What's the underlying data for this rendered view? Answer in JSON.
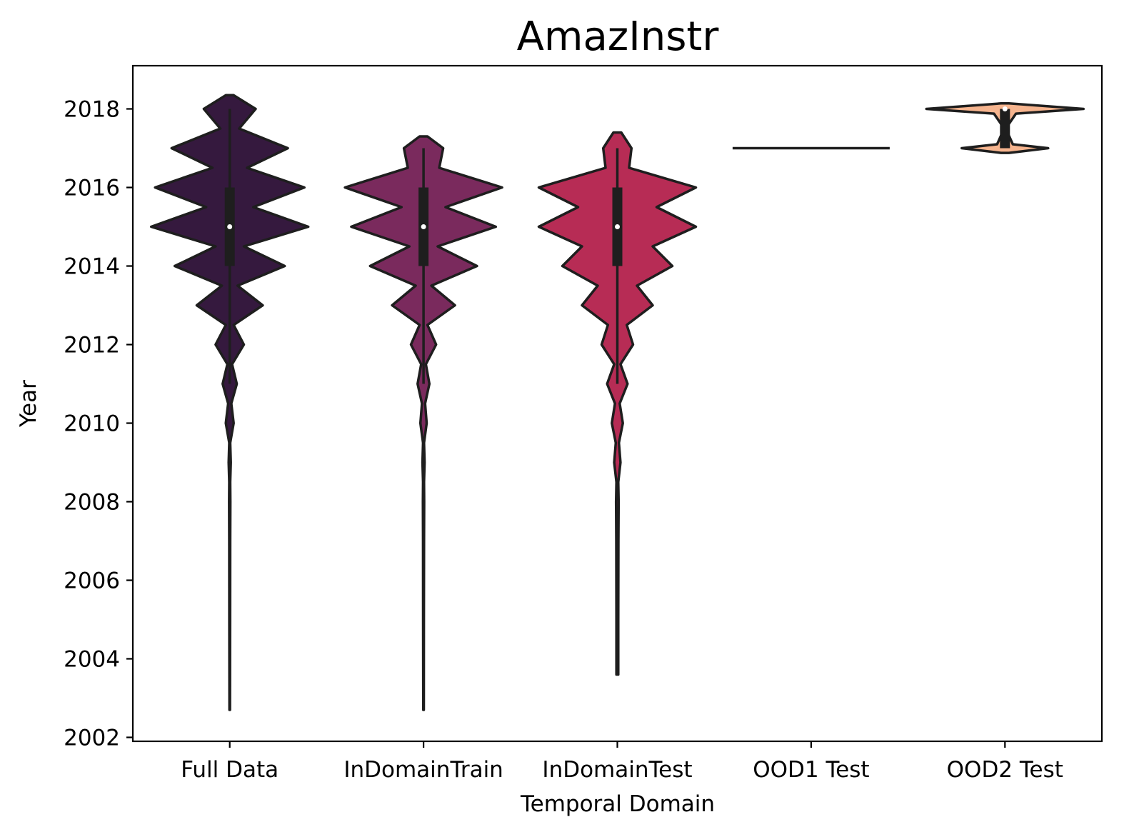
{
  "chart_data": {
    "type": "violin",
    "title": "AmazInstr",
    "xlabel": "Temporal Domain",
    "ylabel": "Year",
    "ylim": [
      2001.9,
      2019.1
    ],
    "yticks": [
      2002,
      2004,
      2006,
      2008,
      2010,
      2012,
      2014,
      2016,
      2018
    ],
    "categories": [
      "Full Data",
      "InDomainTrain",
      "InDomainTest",
      "OOD1 Test",
      "OOD2 Test"
    ],
    "grid": false,
    "series": [
      {
        "category": "Full Data",
        "color": "#35193e",
        "density": [
          [
            2002.7,
            0.004
          ],
          [
            2005,
            0.005
          ],
          [
            2007,
            0.006
          ],
          [
            2008,
            0.008
          ],
          [
            2008.5,
            0.006
          ],
          [
            2009,
            0.014
          ],
          [
            2009.5,
            0.006
          ],
          [
            2010,
            0.05
          ],
          [
            2010.5,
            0.02
          ],
          [
            2011,
            0.09
          ],
          [
            2011.5,
            0.03
          ],
          [
            2012,
            0.18
          ],
          [
            2012.5,
            0.05
          ],
          [
            2013,
            0.42
          ],
          [
            2013.5,
            0.1
          ],
          [
            2014,
            0.7
          ],
          [
            2014.5,
            0.18
          ],
          [
            2015,
            1.0
          ],
          [
            2015.5,
            0.3
          ],
          [
            2016,
            0.95
          ],
          [
            2016.5,
            0.22
          ],
          [
            2017,
            0.74
          ],
          [
            2017.5,
            0.12
          ],
          [
            2018,
            0.33
          ],
          [
            2018.35,
            0.05
          ]
        ],
        "q1": 2014,
        "median": 2015,
        "q3": 2016,
        "whisker_low": 2011,
        "whisker_high": 2018
      },
      {
        "category": "InDomainTrain",
        "color": "#7a2a5d",
        "density": [
          [
            2002.7,
            0.004
          ],
          [
            2005,
            0.005
          ],
          [
            2007,
            0.006
          ],
          [
            2008,
            0.008
          ],
          [
            2008.5,
            0.006
          ],
          [
            2009,
            0.014
          ],
          [
            2009.5,
            0.006
          ],
          [
            2010,
            0.04
          ],
          [
            2010.5,
            0.02
          ],
          [
            2011,
            0.075
          ],
          [
            2011.5,
            0.03
          ],
          [
            2012,
            0.16
          ],
          [
            2012.5,
            0.05
          ],
          [
            2013,
            0.4
          ],
          [
            2013.5,
            0.1
          ],
          [
            2014,
            0.68
          ],
          [
            2014.5,
            0.18
          ],
          [
            2015,
            0.92
          ],
          [
            2015.5,
            0.28
          ],
          [
            2016,
            1.0
          ],
          [
            2016.5,
            0.2
          ],
          [
            2017,
            0.25
          ],
          [
            2017.3,
            0.05
          ]
        ],
        "q1": 2014,
        "median": 2015,
        "q3": 2016,
        "whisker_low": 2011,
        "whisker_high": 2017
      },
      {
        "category": "InDomainTest",
        "color": "#b72c55",
        "density": [
          [
            2003.6,
            0.012
          ],
          [
            2005,
            0.012
          ],
          [
            2007,
            0.014
          ],
          [
            2008,
            0.016
          ],
          [
            2008.5,
            0.012
          ],
          [
            2009,
            0.04
          ],
          [
            2009.5,
            0.02
          ],
          [
            2010,
            0.07
          ],
          [
            2010.5,
            0.03
          ],
          [
            2011,
            0.13
          ],
          [
            2011.5,
            0.04
          ],
          [
            2012,
            0.2
          ],
          [
            2012.5,
            0.12
          ],
          [
            2013,
            0.45
          ],
          [
            2013.5,
            0.25
          ],
          [
            2014,
            0.7
          ],
          [
            2014.5,
            0.45
          ],
          [
            2015,
            1.0
          ],
          [
            2015.5,
            0.5
          ],
          [
            2016,
            1.0
          ],
          [
            2016.5,
            0.15
          ],
          [
            2017,
            0.18
          ],
          [
            2017.4,
            0.05
          ]
        ],
        "q1": 2014,
        "median": 2015,
        "q3": 2016,
        "whisker_low": 2011,
        "whisker_high": 2017
      },
      {
        "category": "OOD1 Test",
        "color": "#f06043",
        "density": [],
        "single_value": 2017
      },
      {
        "category": "OOD2 Test",
        "color": "#f6b48e",
        "density": [
          [
            2016.88,
            0.05
          ],
          [
            2017,
            0.55
          ],
          [
            2017.1,
            0.1
          ],
          [
            2017.5,
            0.01
          ],
          [
            2017.88,
            0.14
          ],
          [
            2018,
            1.0
          ],
          [
            2018.14,
            0.05
          ]
        ],
        "q1": 2017,
        "median": 2018,
        "q3": 2018,
        "whisker_low": 2017,
        "whisker_high": 2018
      }
    ]
  }
}
